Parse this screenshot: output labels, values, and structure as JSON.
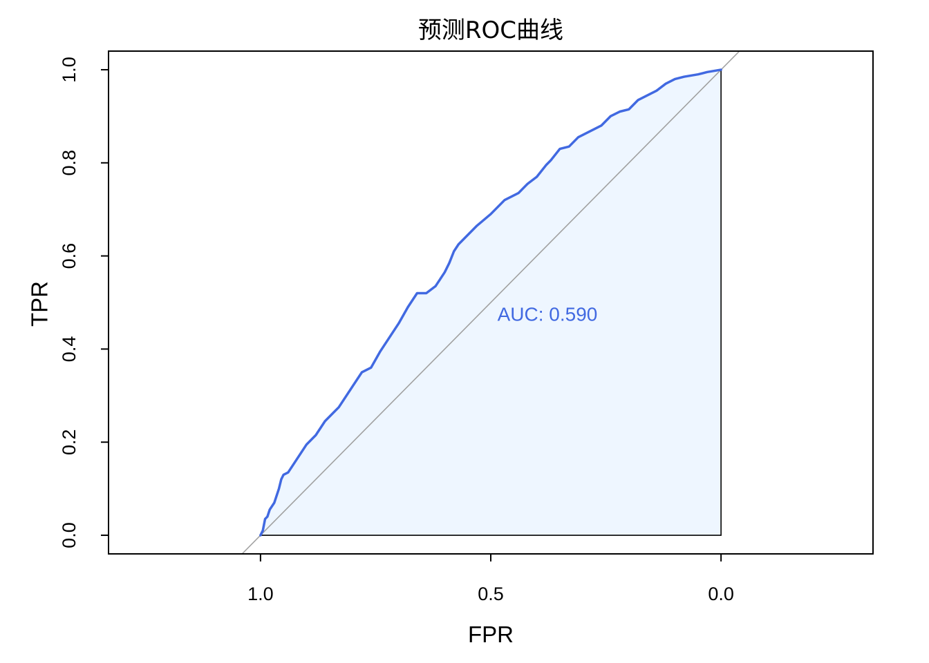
{
  "chart_data": {
    "type": "line",
    "title": "预测ROC曲线",
    "xlabel": "FPR",
    "ylabel": "TPR",
    "x_axis_reversed": true,
    "xlim": [
      1.33,
      -0.33
    ],
    "ylim": [
      -0.04,
      1.04
    ],
    "x_ticks": [
      "1.0",
      "0.5",
      "0.0"
    ],
    "x_tick_values": [
      1.0,
      0.5,
      0.0
    ],
    "y_ticks": [
      "0.0",
      "0.2",
      "0.4",
      "0.6",
      "0.8",
      "1.0"
    ],
    "y_tick_values": [
      0.0,
      0.2,
      0.4,
      0.6,
      0.8,
      1.0
    ],
    "grid": false,
    "auc_text": "AUC: 0.590",
    "auc_text_position": [
      0.5,
      0.48
    ],
    "colors": {
      "curve": "#4169E1",
      "fill": "#EEF6FF",
      "diagonal": "#A0A0A0",
      "auc_text": "#4169E1",
      "frame": "#000000"
    },
    "series": [
      {
        "x": [
          1.0,
          0.995,
          0.99,
          0.985,
          0.98,
          0.97,
          0.96,
          0.955,
          0.95,
          0.94,
          0.93,
          0.92,
          0.91,
          0.9,
          0.88,
          0.86,
          0.85,
          0.84,
          0.83,
          0.82,
          0.81,
          0.8,
          0.78,
          0.76,
          0.74,
          0.72,
          0.71,
          0.7,
          0.68,
          0.66,
          0.64,
          0.62,
          0.6,
          0.59,
          0.58,
          0.57,
          0.55,
          0.53,
          0.5,
          0.47,
          0.44,
          0.42,
          0.4,
          0.38,
          0.37,
          0.35,
          0.33,
          0.31,
          0.3,
          0.28,
          0.26,
          0.24,
          0.22,
          0.2,
          0.18,
          0.16,
          0.14,
          0.12,
          0.1,
          0.08,
          0.05,
          0.03,
          0.0
        ],
        "y": [
          0.0,
          0.01,
          0.035,
          0.04,
          0.055,
          0.07,
          0.1,
          0.12,
          0.13,
          0.135,
          0.15,
          0.165,
          0.18,
          0.195,
          0.215,
          0.245,
          0.255,
          0.265,
          0.275,
          0.29,
          0.305,
          0.32,
          0.35,
          0.36,
          0.395,
          0.425,
          0.44,
          0.455,
          0.49,
          0.52,
          0.52,
          0.535,
          0.565,
          0.585,
          0.61,
          0.625,
          0.645,
          0.665,
          0.69,
          0.72,
          0.735,
          0.755,
          0.77,
          0.795,
          0.805,
          0.83,
          0.835,
          0.855,
          0.86,
          0.87,
          0.88,
          0.9,
          0.91,
          0.915,
          0.935,
          0.945,
          0.955,
          0.97,
          0.98,
          0.985,
          0.99,
          0.995,
          1.0
        ]
      }
    ]
  }
}
